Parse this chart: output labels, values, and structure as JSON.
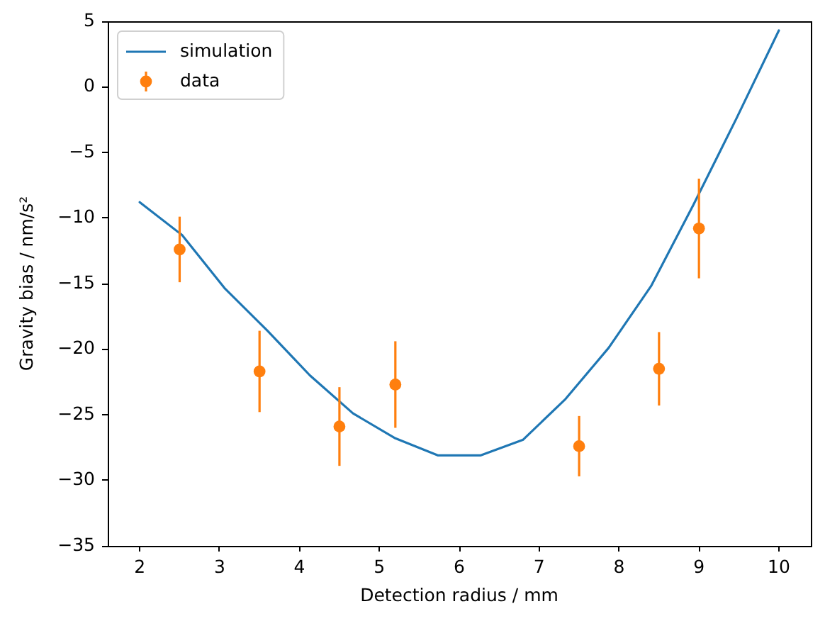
{
  "chart_data": {
    "type": "line",
    "xlabel": "Detection radius / mm",
    "ylabel": "Gravity bias / nm/s²",
    "xlim": [
      1.6,
      10.4
    ],
    "xticks": [
      2,
      3,
      4,
      5,
      6,
      7,
      8,
      9,
      10
    ],
    "ylim": [
      -35,
      5
    ],
    "yticks": [
      -35,
      -30,
      -25,
      -20,
      -15,
      -10,
      -5,
      0,
      5
    ],
    "grid": false,
    "legend": "top left",
    "series": [
      {
        "name": "simulation",
        "color": "#1f77b4",
        "line_style": "solid",
        "marker": "none",
        "x": [
          2,
          2.53,
          3.07,
          3.6,
          4.13,
          4.67,
          5.2,
          5.73,
          6.27,
          6.8,
          7.33,
          7.87,
          8.4,
          8.93,
          9.47,
          10
        ],
        "values": [
          -8.8,
          -11.3,
          -15.4,
          -18.6,
          -22.0,
          -24.9,
          -26.8,
          -28.1,
          -28.1,
          -26.9,
          -23.8,
          -19.9,
          -15.2,
          -9.0,
          -2.4,
          4.3
        ]
      },
      {
        "name": "data",
        "type": "scatter",
        "color": "#ff7f0e",
        "marker": "circle",
        "x": [
          2.5,
          3.5,
          4.5,
          5.2,
          7.5,
          8.5,
          9
        ],
        "values": [
          -12.4,
          -21.7,
          -25.9,
          -22.7,
          -27.4,
          -21.5,
          -10.8
        ],
        "errors": [
          2.5,
          3.1,
          3.0,
          3.3,
          2.3,
          2.8,
          3.8
        ]
      }
    ]
  }
}
